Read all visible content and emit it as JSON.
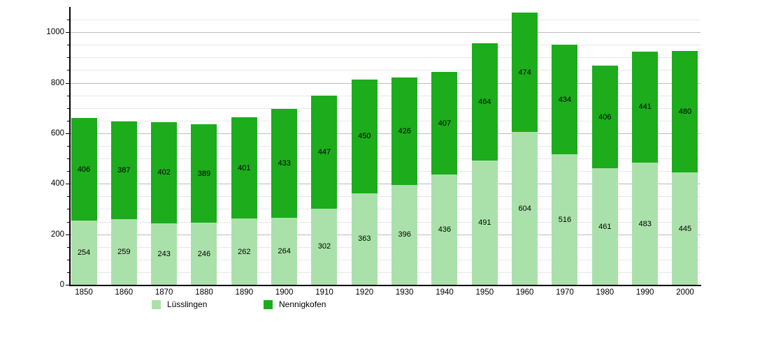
{
  "chart_data": {
    "type": "bar",
    "stacked": true,
    "title": "",
    "xlabel": "",
    "ylabel": "",
    "categories": [
      "1850",
      "1860",
      "1870",
      "1880",
      "1890",
      "1900",
      "1910",
      "1920",
      "1930",
      "1940",
      "1950",
      "1960",
      "1970",
      "1980",
      "1990",
      "2000"
    ],
    "series": [
      {
        "name": "Lüsslingen",
        "color": "#aae1aa",
        "values": [
          254,
          259,
          243,
          246,
          262,
          264,
          302,
          363,
          396,
          436,
          491,
          604,
          516,
          461,
          483,
          445
        ]
      },
      {
        "name": "Nennigkofen",
        "color": "#1cac1c",
        "values": [
          406,
          387,
          402,
          389,
          401,
          433,
          447,
          450,
          426,
          407,
          464,
          474,
          434,
          406,
          441,
          480
        ]
      }
    ],
    "ylim": [
      0,
      1100
    ],
    "yticks": [
      0,
      200,
      400,
      600,
      800,
      1000
    ],
    "minor_grid_step": 50,
    "grid": true,
    "legend_position": "bottom",
    "bar_value_labels": true,
    "colors": {
      "axis": "#000000",
      "major_grid": "#bdbdbd",
      "minor_grid": "#e8e8e8",
      "value_label": "#000000"
    }
  }
}
